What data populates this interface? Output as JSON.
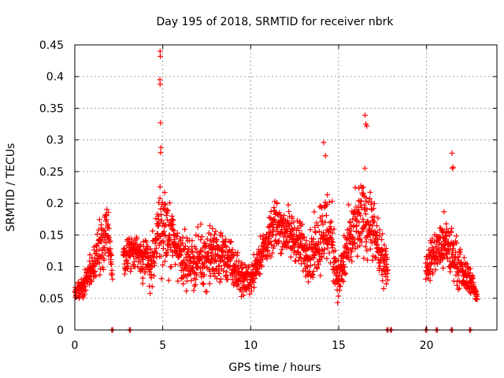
{
  "chart_data": {
    "type": "scatter",
    "title": "Day 195 of 2018, SRMTID for receiver nbrk",
    "xlabel": "GPS time / hours",
    "ylabel": "SRMTID / TECUs",
    "xlim": [
      0,
      24
    ],
    "ylim": [
      0,
      0.45
    ],
    "x_ticks": [
      0,
      5,
      10,
      15,
      20
    ],
    "x_tick_labels": [
      "0",
      "5",
      "10",
      "15",
      "20"
    ],
    "y_ticks": [
      0,
      0.05,
      0.1,
      0.15,
      0.2,
      0.25,
      0.3,
      0.35,
      0.4,
      0.45
    ],
    "y_tick_labels": [
      "0",
      "0.05",
      "0.1",
      "0.15",
      "0.2",
      "0.25",
      "0.3",
      "0.35",
      "0.4",
      "0.45"
    ],
    "grid": true,
    "marker": "plus",
    "series_color": "#ff0000",
    "zero_marker_color": "#cc0000",
    "envelope": [
      [
        0.0,
        0.04,
        0.08
      ],
      [
        0.5,
        0.04,
        0.1
      ],
      [
        1.0,
        0.06,
        0.14
      ],
      [
        1.5,
        0.08,
        0.2
      ],
      [
        1.9,
        0.09,
        0.21
      ],
      [
        2.1,
        0.06,
        0.14
      ],
      [
        3.0,
        0.08,
        0.16
      ],
      [
        3.5,
        0.08,
        0.17
      ],
      [
        4.0,
        0.06,
        0.16
      ],
      [
        4.5,
        0.04,
        0.17
      ],
      [
        4.8,
        0.06,
        0.28
      ],
      [
        5.1,
        0.07,
        0.24
      ],
      [
        5.5,
        0.07,
        0.22
      ],
      [
        6.0,
        0.06,
        0.18
      ],
      [
        6.5,
        0.05,
        0.16
      ],
      [
        7.0,
        0.05,
        0.17
      ],
      [
        7.5,
        0.05,
        0.18
      ],
      [
        8.0,
        0.05,
        0.19
      ],
      [
        8.5,
        0.06,
        0.17
      ],
      [
        9.0,
        0.05,
        0.15
      ],
      [
        9.5,
        0.04,
        0.12
      ],
      [
        10.0,
        0.05,
        0.11
      ],
      [
        10.5,
        0.07,
        0.16
      ],
      [
        11.0,
        0.1,
        0.18
      ],
      [
        11.5,
        0.11,
        0.23
      ],
      [
        12.0,
        0.1,
        0.21
      ],
      [
        12.5,
        0.09,
        0.2
      ],
      [
        13.0,
        0.07,
        0.18
      ],
      [
        13.5,
        0.06,
        0.18
      ],
      [
        14.0,
        0.07,
        0.24
      ],
      [
        14.5,
        0.06,
        0.26
      ],
      [
        15.0,
        0.03,
        0.12
      ],
      [
        15.5,
        0.06,
        0.2
      ],
      [
        16.0,
        0.08,
        0.24
      ],
      [
        16.5,
        0.09,
        0.28
      ],
      [
        17.0,
        0.08,
        0.22
      ],
      [
        17.4,
        0.06,
        0.17
      ],
      [
        17.7,
        0.05,
        0.14
      ],
      [
        20.0,
        0.06,
        0.14
      ],
      [
        20.5,
        0.08,
        0.17
      ],
      [
        21.0,
        0.07,
        0.2
      ],
      [
        21.5,
        0.06,
        0.18
      ],
      [
        22.0,
        0.05,
        0.13
      ],
      [
        22.5,
        0.05,
        0.11
      ],
      [
        22.9,
        0.04,
        0.06
      ]
    ],
    "point_density_per_hour": 95,
    "data_gaps_hours": [
      [
        2.15,
        2.75
      ],
      [
        17.8,
        19.95
      ]
    ],
    "outliers": [
      {
        "x": 4.85,
        "y": 0.44
      },
      {
        "x": 4.86,
        "y": 0.432
      },
      {
        "x": 4.84,
        "y": 0.395
      },
      {
        "x": 4.85,
        "y": 0.388
      },
      {
        "x": 4.87,
        "y": 0.327
      },
      {
        "x": 4.9,
        "y": 0.288
      },
      {
        "x": 4.88,
        "y": 0.28
      },
      {
        "x": 14.15,
        "y": 0.296
      },
      {
        "x": 14.25,
        "y": 0.275
      },
      {
        "x": 16.5,
        "y": 0.339
      },
      {
        "x": 16.55,
        "y": 0.325
      },
      {
        "x": 16.6,
        "y": 0.322
      },
      {
        "x": 21.45,
        "y": 0.279
      },
      {
        "x": 21.5,
        "y": 0.257
      },
      {
        "x": 21.48,
        "y": 0.255
      }
    ],
    "zero_markers_x": [
      2.1,
      3.1,
      17.75,
      17.95,
      19.95,
      20.55,
      21.4,
      22.45
    ]
  }
}
